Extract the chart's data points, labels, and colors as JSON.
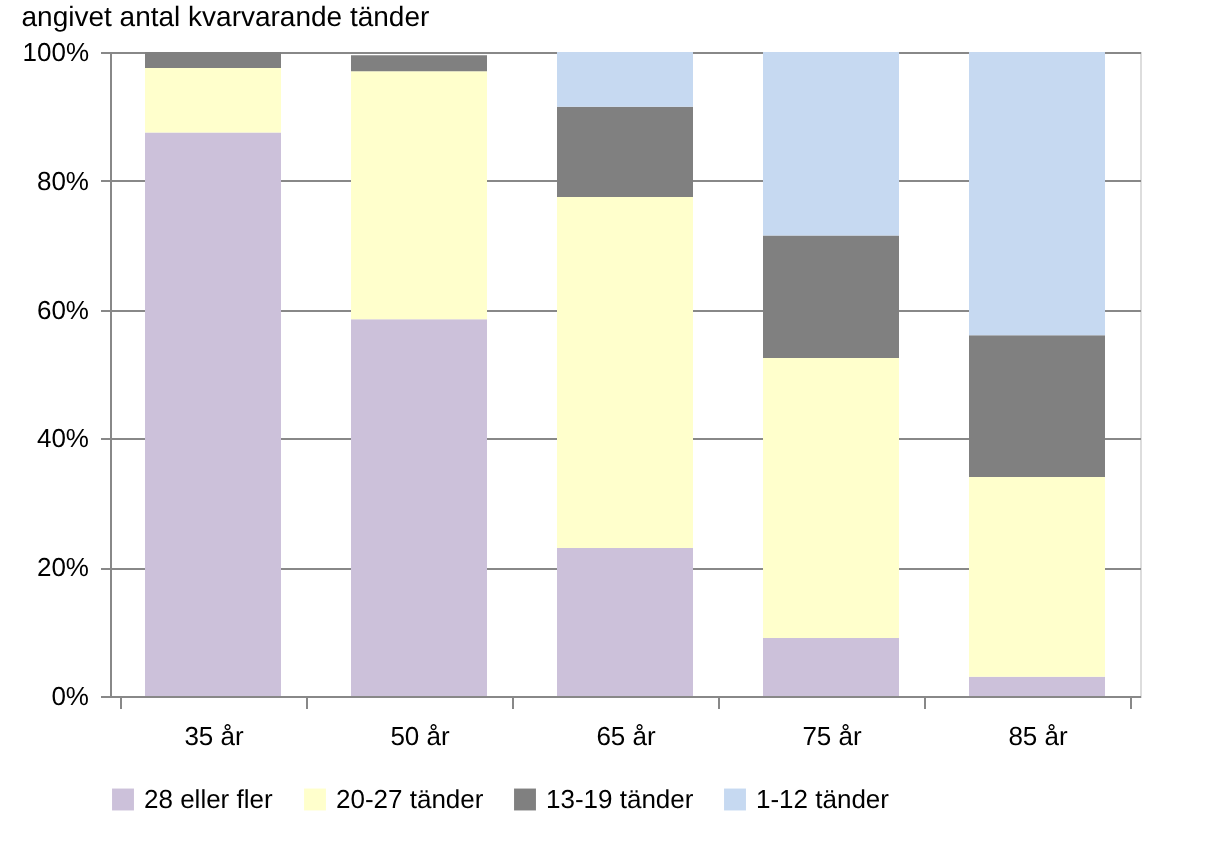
{
  "chart_data": {
    "type": "bar",
    "stacked": true,
    "title": "angivet antal kvarvarande tänder",
    "categories": [
      "35 år",
      "50 år",
      "65 år",
      "75 år",
      "85 år"
    ],
    "series": [
      {
        "name": "28 eller fler",
        "color": "#ccc1da",
        "values": [
          87.5,
          58.5,
          23,
          9,
          3
        ]
      },
      {
        "name": "20-27 tänder",
        "color": "#ffffcc",
        "values": [
          10,
          38.5,
          54.5,
          43.5,
          31
        ]
      },
      {
        "name": "13-19 tänder",
        "color": "#808080",
        "values": [
          2.5,
          2.5,
          14,
          19,
          22
        ]
      },
      {
        "name": "1-12 tänder",
        "color": "#c6d9f1",
        "values": [
          0,
          null,
          8.5,
          28.5,
          44
        ]
      }
    ],
    "ylim": [
      0,
      100
    ],
    "yticks": [
      {
        "value": 0,
        "label": "0%"
      },
      {
        "value": 20,
        "label": "20%"
      },
      {
        "value": 40,
        "label": "40%"
      },
      {
        "value": 60,
        "label": "60%"
      },
      {
        "value": 80,
        "label": "80%"
      },
      {
        "value": 100,
        "label": "100%"
      }
    ],
    "grid": "y",
    "legend": "bottom"
  }
}
